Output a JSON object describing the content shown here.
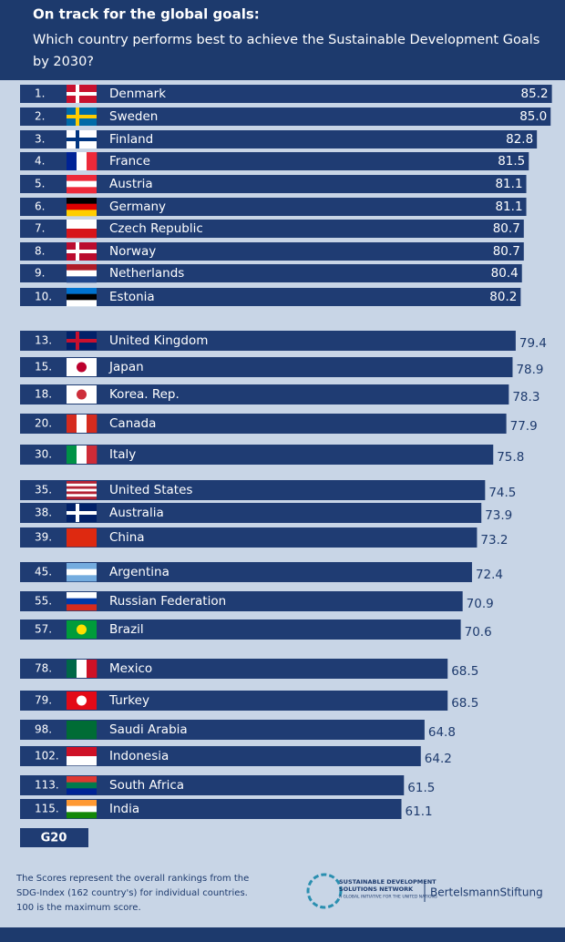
{
  "chart_data": {
    "type": "bar",
    "orientation": "horizontal",
    "title": "On track for the global goals:",
    "subtitle": [
      "Which country performs best to achieve the Sustainable Development Goals",
      "by 2030?"
    ],
    "ranks": [
      "1.",
      "2.",
      "3.",
      "4.",
      "5.",
      "6.",
      "7.",
      "8.",
      "9.",
      "10.",
      "13.",
      "15.",
      "18.",
      "20.",
      "30.",
      "35.",
      "38.",
      "39.",
      "45.",
      "55.",
      "57.",
      "78.",
      "79.",
      "98.",
      "102.",
      "113.",
      "115."
    ],
    "categories": [
      "Denmark",
      "Sweden",
      "Finland",
      "France",
      "Austria",
      "Germany",
      "Czech Republic",
      "Norway",
      "Netherlands",
      "Estonia",
      "United Kingdom",
      "Japan",
      "Korea. Rep.",
      "Canada",
      "Italy",
      "United States",
      "Australia",
      "China",
      "Argentina",
      "Russian Federation",
      "Brazil",
      "Mexico",
      "Turkey",
      "Saudi Arabia",
      "Indonesia",
      "South Africa",
      "India"
    ],
    "values": [
      85.2,
      85.0,
      82.8,
      81.5,
      81.1,
      81.1,
      80.7,
      80.7,
      80.4,
      80.2,
      79.4,
      78.9,
      78.3,
      77.9,
      75.8,
      74.5,
      73.9,
      73.2,
      72.4,
      70.9,
      70.6,
      68.5,
      68.5,
      64.8,
      64.2,
      61.5,
      61.1
    ],
    "value_labels": [
      "85.2",
      "85.0",
      "82.8",
      "81.5",
      "81.1",
      "81.1",
      "80.7",
      "80.7",
      "80.4",
      "80.2",
      "79.4",
      "78.9",
      "78.3",
      "77.9",
      "75.8",
      "74.5",
      "73.9",
      "73.2",
      "72.4",
      "70.9",
      "70.6",
      "68.5",
      "68.5",
      "64.8",
      "64.2",
      "61.5",
      "61.1"
    ],
    "color": "#1f3c73",
    "group_label": "G20",
    "note": [
      "The Scores represent the overall rankings from the",
      "SDG-Index (162 country's) for individual countries.",
      "100 is the maximum score."
    ]
  },
  "logos": {
    "sdsn": [
      "SUSTAINABLE DEVELOPMENT",
      "SOLUTIONS NETWORK",
      "A GLOBAL INITIATIVE FOR THE UNITED NATIONS"
    ],
    "bertelsmann": "BertelsmannStiftung"
  }
}
